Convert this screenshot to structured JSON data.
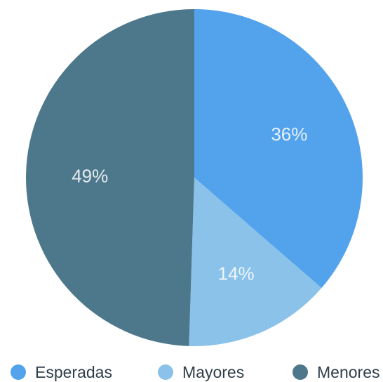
{
  "chart_data": {
    "type": "pie",
    "categories": [
      "Esperadas",
      "Mayores",
      "Menores"
    ],
    "values": [
      36,
      14,
      49
    ],
    "value_labels": [
      "36%",
      "14%",
      "49%"
    ],
    "colors": [
      "#53A3EC",
      "#8BC2EA",
      "#4D788C"
    ],
    "start_angle": "12 o'clock",
    "direction": "clockwise",
    "legend_position": "bottom",
    "title": ""
  }
}
